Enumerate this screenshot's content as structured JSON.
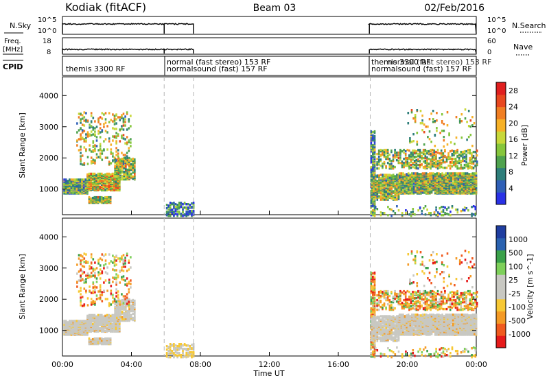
{
  "header": {
    "station": "Kodiak (fitACF)",
    "beam": "Beam 03",
    "date": "02/Feb/2016"
  },
  "panels": {
    "nsky": {
      "label": "N.Sky",
      "ticks": [
        "10^5",
        "10^0"
      ],
      "right_label": "N.Search",
      "right_ticks": [
        "10^5",
        "10^0"
      ]
    },
    "freq": {
      "label_top": "Freq.",
      "label_unit": "[MHz]",
      "ticks": [
        "18",
        "8"
      ],
      "right_label": "Nave",
      "right_ticks": [
        "60",
        "0"
      ]
    },
    "cpid": {
      "label": "CPID",
      "segments": [
        {
          "text": "themis 3300 RF"
        },
        {
          "text": "normal (fast stereo) 153 RF"
        },
        {
          "text": "normalsound (fast) 157 RF"
        },
        {
          "text": "themis 3300 RF"
        },
        {
          "text": "normal (fast stereo) 153 RF"
        },
        {
          "text": "normalsound (fast) 157 RF"
        }
      ]
    }
  },
  "colors": {
    "power": [
      "#2a32e6",
      "#2f5fb6",
      "#2e7e7a",
      "#4fa24e",
      "#86c63c",
      "#c8d83a",
      "#f6b127",
      "#f07e22",
      "#e8481f",
      "#e01f1f"
    ],
    "velocity": [
      "#e61a1a",
      "#f05a1e",
      "#f49a25",
      "#f7c834",
      "#c8c8c2",
      "#c8c8c2",
      "#7ed05a",
      "#3aa14a",
      "#2a62b0",
      "#1f3ea0"
    ],
    "dashed_line": "#b4b4b4"
  },
  "chart_data": [
    {
      "type": "heatmap",
      "name": "power",
      "xlabel": "Time UT",
      "ylabel": "Slant Range [km]",
      "xlim_hours": [
        0,
        24
      ],
      "ylim": [
        180,
        4600
      ],
      "x_ticks": [
        "00:00",
        "04:00",
        "08:00",
        "12:00",
        "16:00",
        "20:00",
        "00:00"
      ],
      "y_ticks": [
        1000,
        2000,
        3000,
        4000
      ],
      "colorbar": {
        "label": "Power [dB]",
        "ticks": [
          4,
          8,
          12,
          16,
          20,
          24,
          28
        ],
        "range": [
          0,
          30
        ]
      },
      "data_gap_hours": [
        7.6,
        17.8
      ],
      "mode_change_lines_hours": [
        5.9,
        7.6,
        17.85
      ]
    },
    {
      "type": "heatmap",
      "name": "velocity",
      "xlabel": "Time UT",
      "ylabel": "Slant Range [km]",
      "xlim_hours": [
        0,
        24
      ],
      "ylim": [
        180,
        4600
      ],
      "x_ticks": [
        "00:00",
        "04:00",
        "08:00",
        "12:00",
        "16:00",
        "20:00",
        "00:00"
      ],
      "y_ticks": [
        1000,
        2000,
        3000,
        4000
      ],
      "colorbar": {
        "label": "Velocity [m s^-1]",
        "ticks": [
          1000,
          500,
          100,
          25,
          -25,
          -100,
          -500,
          -1000
        ]
      },
      "data_gap_hours": [
        7.6,
        17.8
      ],
      "mode_change_lines_hours": [
        5.9,
        7.6,
        17.85
      ]
    }
  ]
}
